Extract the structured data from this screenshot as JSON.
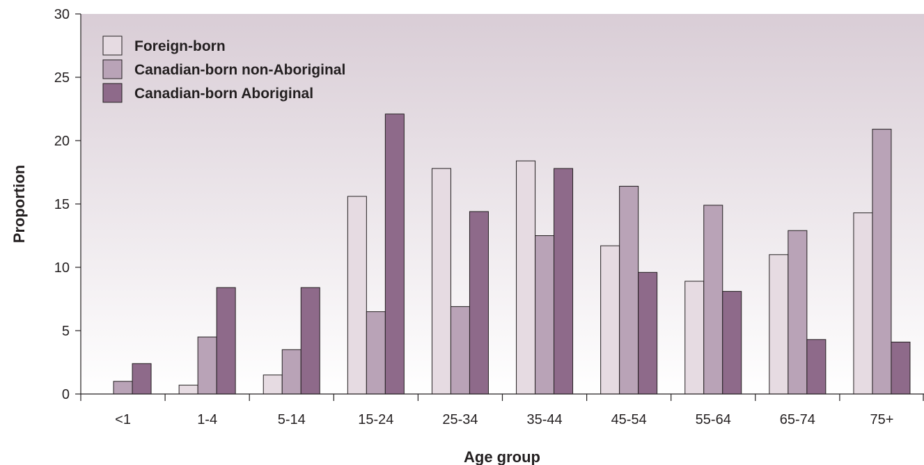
{
  "chart_data": {
    "type": "bar",
    "xlabel": "Age group",
    "ylabel": "Proportion",
    "ylim": [
      0,
      30
    ],
    "yticks": [
      0,
      5,
      10,
      15,
      20,
      25,
      30
    ],
    "categories": [
      "<1",
      "1-4",
      "5-14",
      "15-24",
      "25-34",
      "35-44",
      "45-54",
      "55-64",
      "65-74",
      "75+"
    ],
    "series": [
      {
        "name": "Foreign-born",
        "color": "#e6dbe2",
        "values": [
          0,
          0.7,
          1.5,
          15.6,
          17.8,
          18.4,
          11.7,
          8.9,
          11.0,
          14.3
        ]
      },
      {
        "name": "Canadian-born non-Aboriginal",
        "color": "#b9a3b7",
        "values": [
          1.0,
          4.5,
          3.5,
          6.5,
          6.9,
          12.5,
          16.4,
          14.9,
          12.9,
          20.9
        ]
      },
      {
        "name": "Canadian-born Aboriginal",
        "color": "#8e6a8a",
        "values": [
          2.4,
          8.4,
          8.4,
          22.1,
          14.4,
          17.8,
          9.6,
          8.1,
          4.3,
          4.1
        ]
      }
    ],
    "legend_position": "top-left",
    "grid": false,
    "background": "gradient"
  }
}
